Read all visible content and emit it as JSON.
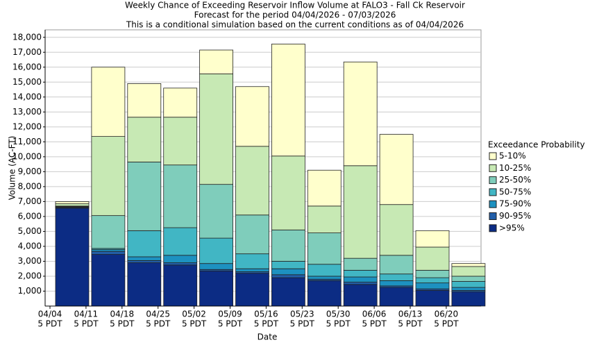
{
  "chart_data": {
    "type": "stacked_bar",
    "title": "Weekly Chance of Exceeding Reservoir Inflow Volume at FALO3 - Fall Ck Reservoir",
    "subtitle": "Forecast for the period 04/04/2026 - 07/03/2026",
    "note": "This is a conditional simulation based on the current conditions as of 04/04/2026",
    "x_label": "Date",
    "y_label": "Volume (AC-FT)",
    "legend_title": "Exceedance Probability",
    "categories": [
      "04/04",
      "04/11",
      "04/18",
      "04/25",
      "05/02",
      "05/09",
      "05/16",
      "05/23",
      "05/30",
      "06/06",
      "06/13",
      "06/20"
    ],
    "category_time_labels": [
      "5 PDT",
      "5 PDT",
      "5 PDT",
      "5 PDT",
      "5 PDT",
      "5 PDT",
      "5 PDT",
      "5 PDT",
      "5 PDT",
      "5 PDT",
      "5 PDT",
      "5 PDT"
    ],
    "series": [
      {
        "name": "5-10%",
        "color": "#ffffcc",
        "values": [
          150,
          4640,
          2250,
          1950,
          1600,
          4000,
          7500,
          2400,
          6950,
          4700,
          1100,
          200
        ]
      },
      {
        "name": "10-25%",
        "color": "#c7e9b4",
        "values": [
          150,
          5300,
          3000,
          3200,
          7400,
          4600,
          4950,
          1800,
          6200,
          3400,
          1550,
          650
        ]
      },
      {
        "name": "25-50%",
        "color": "#7fcdbb",
        "values": [
          40,
          2200,
          4600,
          4200,
          3600,
          2600,
          2100,
          2100,
          800,
          1250,
          500,
          350
        ]
      },
      {
        "name": "50-75%",
        "color": "#41b6c4",
        "values": [
          30,
          80,
          1750,
          1850,
          1700,
          1000,
          500,
          800,
          450,
          450,
          350,
          400
        ]
      },
      {
        "name": "75-90%",
        "color": "#1d91c0",
        "values": [
          30,
          120,
          250,
          500,
          400,
          200,
          400,
          200,
          350,
          350,
          400,
          200
        ]
      },
      {
        "name": "90-95%",
        "color": "#225ea8",
        "values": [
          50,
          200,
          150,
          150,
          100,
          100,
          200,
          100,
          150,
          100,
          100,
          100
        ]
      },
      {
        "name": ">95%",
        "color": "#0c2c84",
        "values": [
          6550,
          3460,
          2900,
          2750,
          2350,
          2200,
          1900,
          1700,
          1450,
          1250,
          1050,
          950
        ]
      }
    ],
    "ylim": [
      0,
      18500
    ],
    "yticks": [
      {
        "value": 1000,
        "label": "1,000"
      },
      {
        "value": 2000,
        "label": "2,000"
      },
      {
        "value": 3000,
        "label": "3,000"
      },
      {
        "value": 4000,
        "label": "4,000"
      },
      {
        "value": 5000,
        "label": "5,000"
      },
      {
        "value": 6000,
        "label": "6,000"
      },
      {
        "value": 7000,
        "label": "7,000"
      },
      {
        "value": 8000,
        "label": "8,000"
      },
      {
        "value": 9000,
        "label": "9,000"
      },
      {
        "value": 10000,
        "label": "10,000"
      },
      {
        "value": 11000,
        "label": "11,000"
      },
      {
        "value": 12000,
        "label": "12,000"
      },
      {
        "value": 13000,
        "label": "13,000"
      },
      {
        "value": 14000,
        "label": "14,000"
      },
      {
        "value": 15000,
        "label": "15,000"
      },
      {
        "value": 16000,
        "label": "16,000"
      },
      {
        "value": 17000,
        "label": "17,000"
      },
      {
        "value": 18000,
        "label": "18,000"
      }
    ],
    "grid": true,
    "legend_position": "right"
  }
}
